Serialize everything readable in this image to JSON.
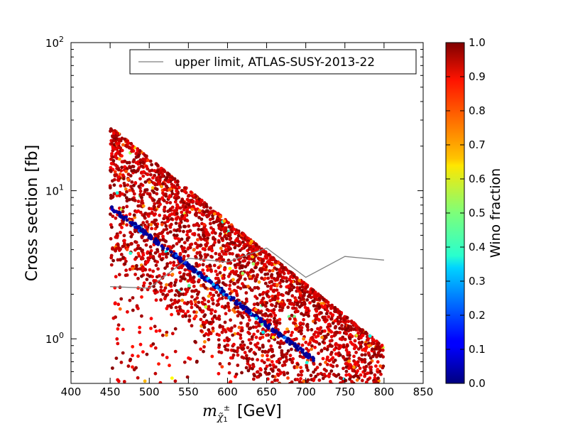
{
  "chart_data": {
    "type": "scatter",
    "title": "",
    "xlabel_main": "m",
    "xlabel_sub": "χ̃",
    "xlabel_sub_index": "1",
    "xlabel_sup": "±",
    "xlabel_unit": "[GeV]",
    "ylabel": "Cross section [fb]",
    "xscale": "linear",
    "yscale": "log",
    "xlim": [
      400,
      850
    ],
    "ylim": [
      0.5,
      100
    ],
    "xticks": [
      400,
      450,
      500,
      550,
      600,
      650,
      700,
      750,
      800,
      850
    ],
    "xtick_labels": [
      "400",
      "450",
      "500",
      "550",
      "600",
      "650",
      "700",
      "750",
      "800",
      "850"
    ],
    "ytick_major": [
      {
        "value": 1,
        "base": "10",
        "exp": "0"
      },
      {
        "value": 10,
        "base": "10",
        "exp": "1"
      },
      {
        "value": 100,
        "base": "10",
        "exp": "2"
      }
    ],
    "colorbar": {
      "label": "Wino fraction",
      "range": [
        0.0,
        1.0
      ],
      "ticks": [
        "0.0",
        "0.1",
        "0.2",
        "0.3",
        "0.4",
        "0.5",
        "0.6",
        "0.7",
        "0.8",
        "0.9",
        "1.0"
      ],
      "colormap": "jet"
    },
    "legend": {
      "placement": "top-right",
      "entries": [
        "upper limit, ATLAS-SUSY-2013-22"
      ]
    },
    "series": [
      {
        "name": "upper limit, ATLAS-SUSY-2013-22",
        "kind": "line",
        "color": "#808080",
        "x": [
          450,
          500,
          550,
          600,
          650,
          700,
          750,
          800
        ],
        "y": [
          2.25,
          2.2,
          3.5,
          3.3,
          4.1,
          2.6,
          3.6,
          3.4
        ]
      },
      {
        "name": "model points (high wino fraction band)",
        "kind": "scatter",
        "x_range": [
          450,
          800
        ],
        "upper_edge": [
          [
            450,
            27
          ],
          [
            800,
            0.88
          ]
        ],
        "band_decades": 0.9,
        "wino_fraction_typical": 0.95
      },
      {
        "name": "model points (low wino fraction line)",
        "kind": "scatter",
        "x": [
          450,
          710
        ],
        "y": [
          7.8,
          0.72
        ],
        "wino_fraction_typical": 0.02
      }
    ]
  }
}
